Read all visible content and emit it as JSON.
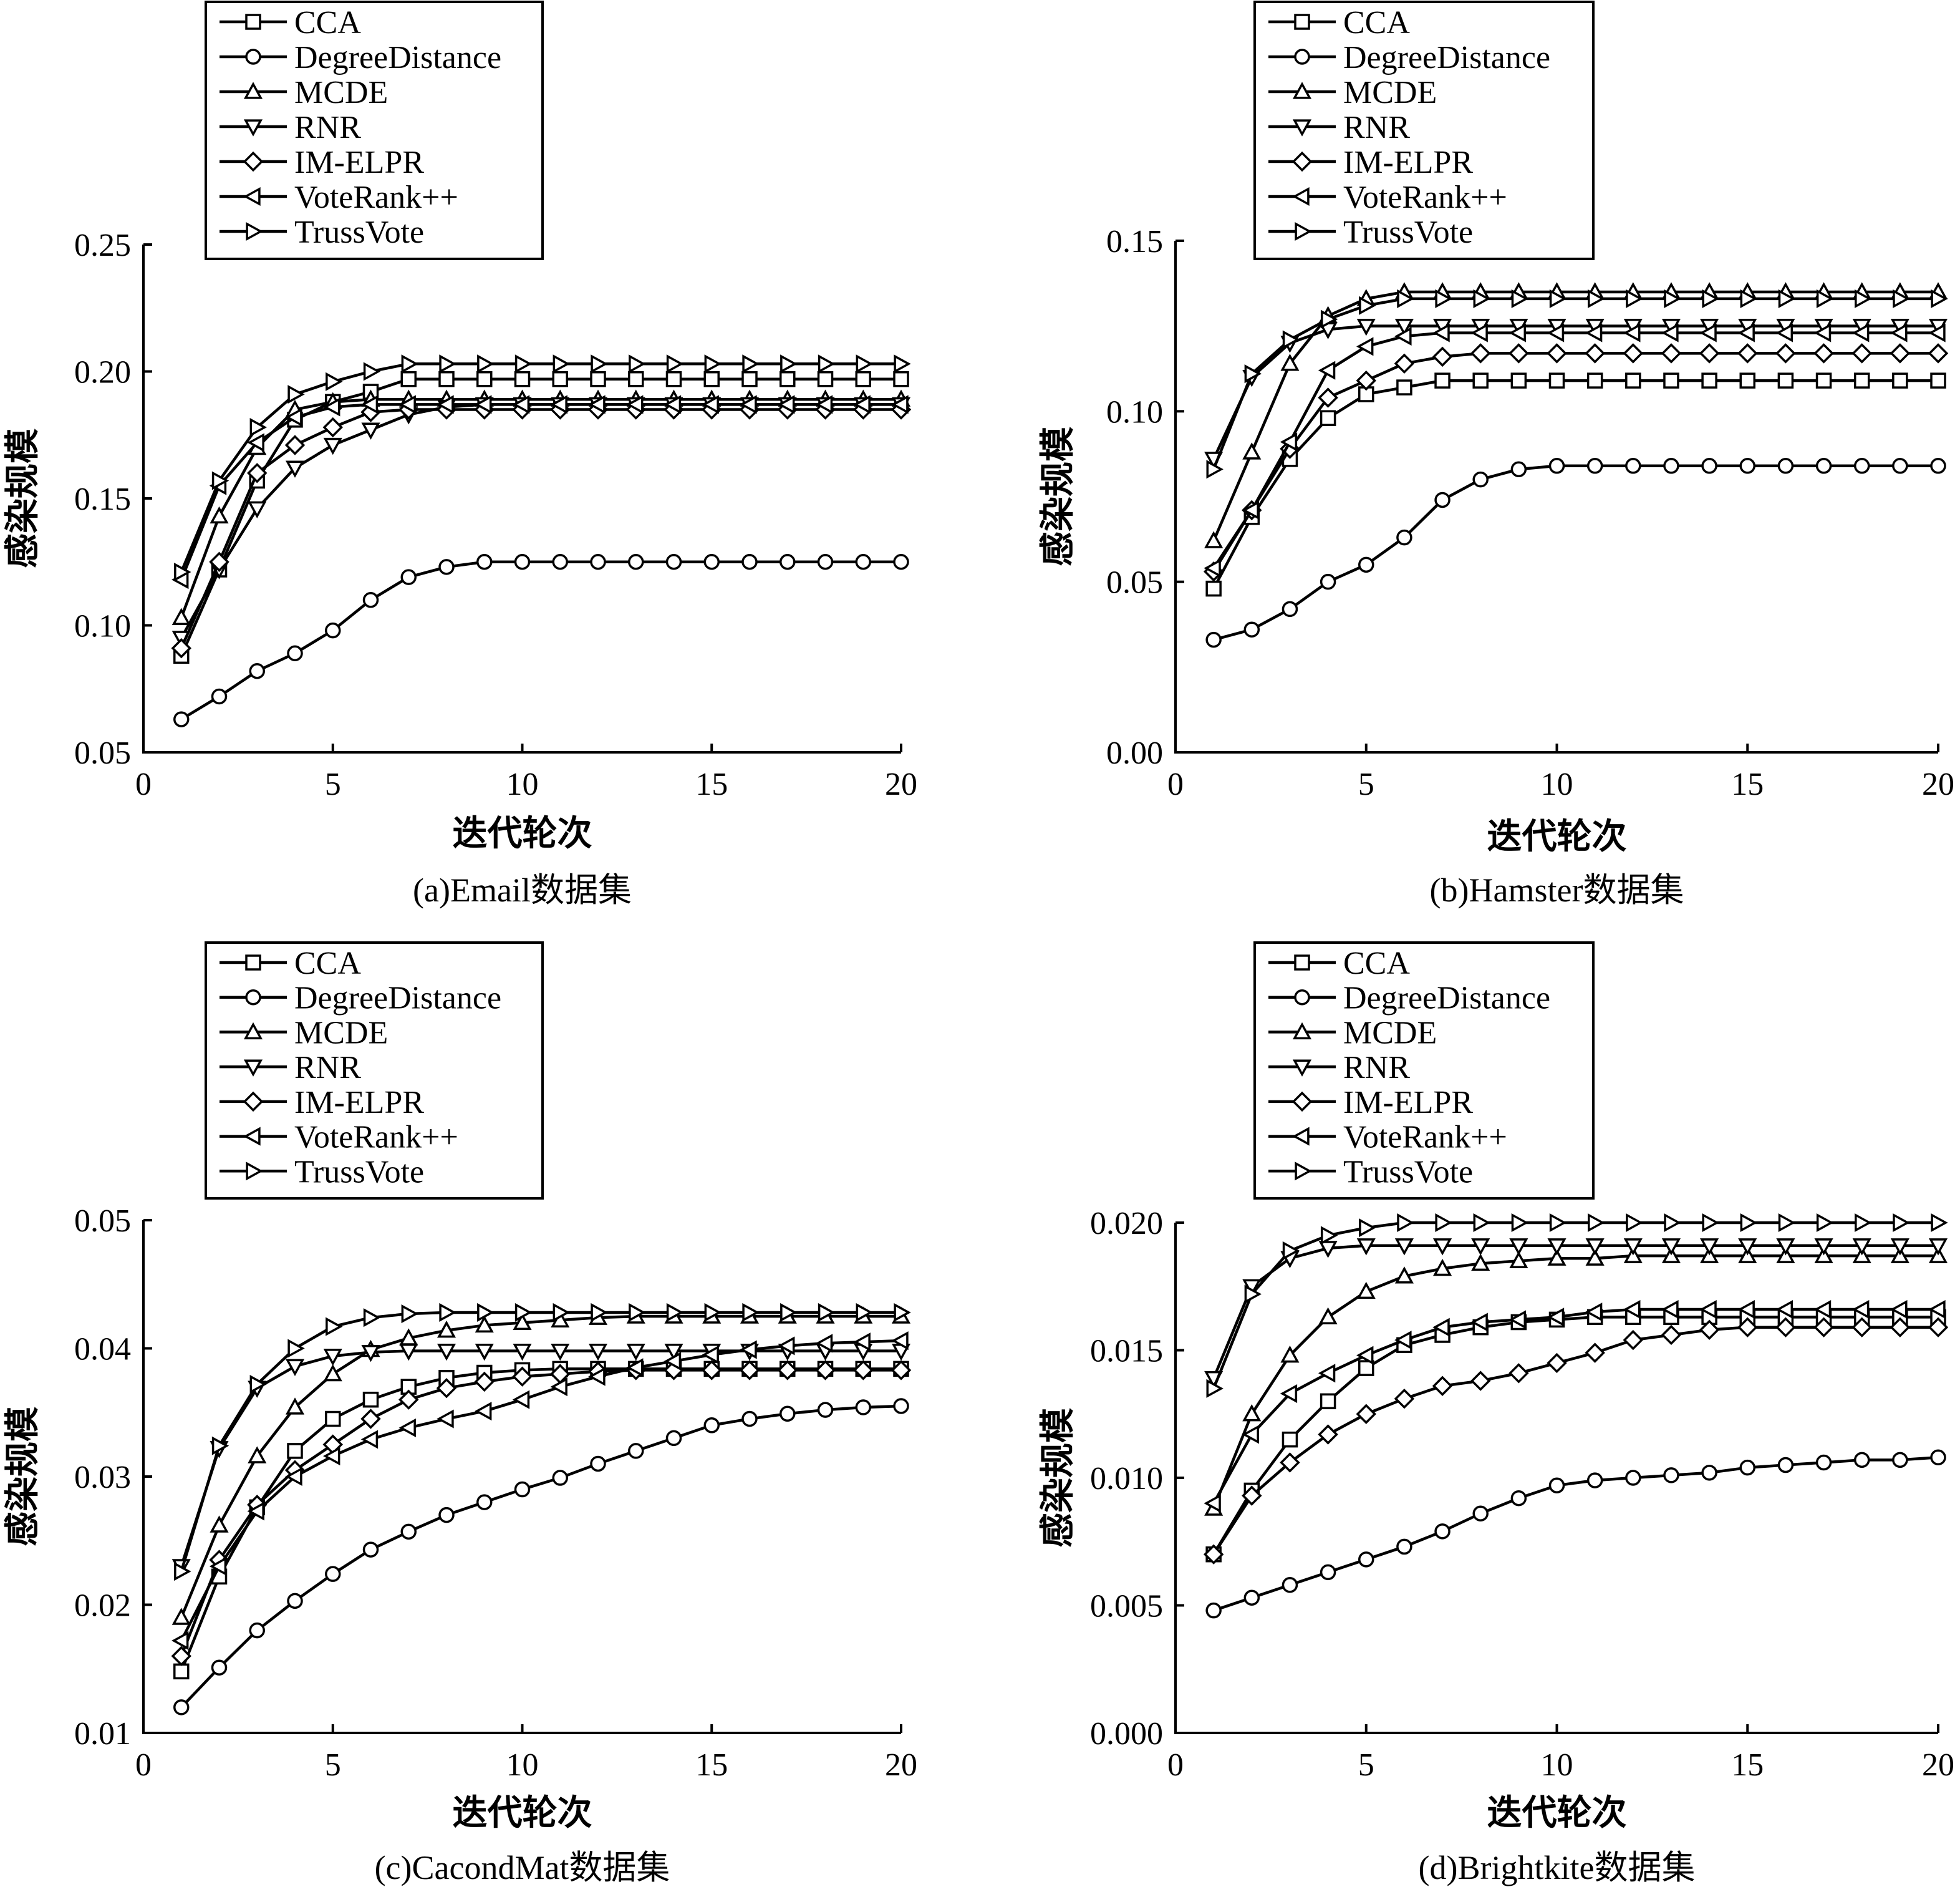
{
  "chart_data": [
    {
      "type": "line",
      "caption": "(a)Email数据集",
      "xlabel": "迭代轮次",
      "ylabel": "感染规模",
      "xlim": [
        0,
        20
      ],
      "ylim": [
        0.05,
        0.25
      ],
      "xticks": [
        0,
        5,
        10,
        15,
        20
      ],
      "yticks": [
        "0.05",
        "0.10",
        "0.15",
        "0.20",
        "0.25"
      ],
      "legend_position": "top-left",
      "grid": false,
      "x": [
        1,
        2,
        3,
        4,
        5,
        6,
        7,
        8,
        9,
        10,
        11,
        12,
        13,
        14,
        15,
        16,
        17,
        18,
        19,
        20
      ],
      "series": [
        {
          "name": "CCA",
          "marker": "square",
          "values": [
            0.088,
            0.122,
            0.157,
            0.181,
            0.188,
            0.192,
            0.197,
            0.197,
            0.197,
            0.197,
            0.197,
            0.197,
            0.197,
            0.197,
            0.197,
            0.197,
            0.197,
            0.197,
            0.197,
            0.197
          ]
        },
        {
          "name": "DegreeDistance",
          "marker": "circle",
          "values": [
            0.063,
            0.072,
            0.082,
            0.089,
            0.098,
            0.11,
            0.119,
            0.123,
            0.125,
            0.125,
            0.125,
            0.125,
            0.125,
            0.125,
            0.125,
            0.125,
            0.125,
            0.125,
            0.125,
            0.125
          ]
        },
        {
          "name": "MCDE",
          "marker": "triangle-up",
          "values": [
            0.103,
            0.143,
            0.17,
            0.185,
            0.188,
            0.189,
            0.189,
            0.189,
            0.189,
            0.189,
            0.189,
            0.189,
            0.189,
            0.189,
            0.189,
            0.189,
            0.189,
            0.189,
            0.189,
            0.189
          ]
        },
        {
          "name": "RNR",
          "marker": "triangle-down",
          "values": [
            0.095,
            0.122,
            0.146,
            0.162,
            0.171,
            0.177,
            0.183,
            0.186,
            0.187,
            0.187,
            0.187,
            0.187,
            0.187,
            0.187,
            0.187,
            0.187,
            0.187,
            0.187,
            0.187,
            0.187
          ]
        },
        {
          "name": "IM-ELPR",
          "marker": "diamond",
          "values": [
            0.091,
            0.125,
            0.16,
            0.171,
            0.178,
            0.184,
            0.185,
            0.185,
            0.185,
            0.185,
            0.185,
            0.185,
            0.185,
            0.185,
            0.185,
            0.185,
            0.185,
            0.185,
            0.185,
            0.185
          ]
        },
        {
          "name": "VoteRank++",
          "marker": "triangle-left",
          "values": [
            0.118,
            0.155,
            0.172,
            0.182,
            0.186,
            0.187,
            0.187,
            0.187,
            0.187,
            0.187,
            0.187,
            0.187,
            0.187,
            0.187,
            0.187,
            0.187,
            0.187,
            0.187,
            0.187,
            0.187
          ]
        },
        {
          "name": "TrussVote",
          "marker": "triangle-right",
          "values": [
            0.121,
            0.157,
            0.178,
            0.191,
            0.196,
            0.2,
            0.203,
            0.203,
            0.203,
            0.203,
            0.203,
            0.203,
            0.203,
            0.203,
            0.203,
            0.203,
            0.203,
            0.203,
            0.203,
            0.203
          ]
        }
      ]
    },
    {
      "type": "line",
      "caption": "(b)Hamster数据集",
      "xlabel": "迭代轮次",
      "ylabel": "感染规模",
      "xlim": [
        0,
        20
      ],
      "ylim": [
        0,
        0.15
      ],
      "xticks": [
        0,
        5,
        10,
        15,
        20
      ],
      "yticks": [
        "0.00",
        "0.05",
        "0.10",
        "0.15"
      ],
      "legend_position": "top-left",
      "grid": false,
      "x": [
        1,
        2,
        3,
        4,
        5,
        6,
        7,
        8,
        9,
        10,
        11,
        12,
        13,
        14,
        15,
        16,
        17,
        18,
        19,
        20
      ],
      "series": [
        {
          "name": "CCA",
          "marker": "square",
          "values": [
            0.048,
            0.069,
            0.086,
            0.098,
            0.105,
            0.107,
            0.109,
            0.109,
            0.109,
            0.109,
            0.109,
            0.109,
            0.109,
            0.109,
            0.109,
            0.109,
            0.109,
            0.109,
            0.109,
            0.109
          ]
        },
        {
          "name": "DegreeDistance",
          "marker": "circle",
          "values": [
            0.033,
            0.036,
            0.042,
            0.05,
            0.055,
            0.063,
            0.074,
            0.08,
            0.083,
            0.084,
            0.084,
            0.084,
            0.084,
            0.084,
            0.084,
            0.084,
            0.084,
            0.084,
            0.084,
            0.084
          ]
        },
        {
          "name": "MCDE",
          "marker": "triangle-up",
          "values": [
            0.062,
            0.088,
            0.114,
            0.128,
            0.133,
            0.135,
            0.135,
            0.135,
            0.135,
            0.135,
            0.135,
            0.135,
            0.135,
            0.135,
            0.135,
            0.135,
            0.135,
            0.135,
            0.135,
            0.135
          ]
        },
        {
          "name": "RNR",
          "marker": "triangle-down",
          "values": [
            0.086,
            0.11,
            0.12,
            0.124,
            0.125,
            0.125,
            0.125,
            0.125,
            0.125,
            0.125,
            0.125,
            0.125,
            0.125,
            0.125,
            0.125,
            0.125,
            0.125,
            0.125,
            0.125,
            0.125
          ]
        },
        {
          "name": "IM-ELPR",
          "marker": "diamond",
          "values": [
            0.053,
            0.071,
            0.089,
            0.104,
            0.109,
            0.114,
            0.116,
            0.117,
            0.117,
            0.117,
            0.117,
            0.117,
            0.117,
            0.117,
            0.117,
            0.117,
            0.117,
            0.117,
            0.117,
            0.117
          ]
        },
        {
          "name": "VoteRank++",
          "marker": "triangle-left",
          "values": [
            0.054,
            0.071,
            0.091,
            0.112,
            0.119,
            0.122,
            0.123,
            0.123,
            0.123,
            0.123,
            0.123,
            0.123,
            0.123,
            0.123,
            0.123,
            0.123,
            0.123,
            0.123,
            0.123,
            0.123
          ]
        },
        {
          "name": "TrussVote",
          "marker": "triangle-right",
          "values": [
            0.083,
            0.111,
            0.121,
            0.127,
            0.131,
            0.133,
            0.133,
            0.133,
            0.133,
            0.133,
            0.133,
            0.133,
            0.133,
            0.133,
            0.133,
            0.133,
            0.133,
            0.133,
            0.133,
            0.133
          ]
        }
      ]
    },
    {
      "type": "line",
      "caption": "(c)CacondMat数据集",
      "xlabel": "迭代轮次",
      "ylabel": "感染规模",
      "xlim": [
        0,
        20
      ],
      "ylim": [
        0.01,
        0.05
      ],
      "xticks": [
        0,
        5,
        10,
        15,
        20
      ],
      "yticks": [
        "0.01",
        "0.02",
        "0.03",
        "0.04",
        "0.05"
      ],
      "legend_position": "top-left",
      "grid": false,
      "x": [
        1,
        2,
        3,
        4,
        5,
        6,
        7,
        8,
        9,
        10,
        11,
        12,
        13,
        14,
        15,
        16,
        17,
        18,
        19,
        20
      ],
      "series": [
        {
          "name": "CCA",
          "marker": "square",
          "values": [
            0.0148,
            0.0222,
            0.0276,
            0.032,
            0.0345,
            0.036,
            0.037,
            0.0377,
            0.0381,
            0.0383,
            0.0384,
            0.0384,
            0.0384,
            0.0384,
            0.0384,
            0.0384,
            0.0384,
            0.0384,
            0.0384,
            0.0384
          ]
        },
        {
          "name": "DegreeDistance",
          "marker": "circle",
          "values": [
            0.012,
            0.0151,
            0.018,
            0.0203,
            0.0224,
            0.0243,
            0.0257,
            0.027,
            0.028,
            0.029,
            0.0299,
            0.031,
            0.032,
            0.033,
            0.034,
            0.0345,
            0.0349,
            0.0352,
            0.0354,
            0.0355
          ]
        },
        {
          "name": "MCDE",
          "marker": "triangle-up",
          "values": [
            0.019,
            0.0262,
            0.0316,
            0.0354,
            0.038,
            0.0399,
            0.0408,
            0.0414,
            0.0418,
            0.042,
            0.0422,
            0.0424,
            0.0425,
            0.0425,
            0.0425,
            0.0425,
            0.0425,
            0.0425,
            0.0425,
            0.0425
          ]
        },
        {
          "name": "RNR",
          "marker": "triangle-down",
          "values": [
            0.023,
            0.0322,
            0.0369,
            0.0386,
            0.0394,
            0.0397,
            0.0398,
            0.0398,
            0.0398,
            0.0398,
            0.0398,
            0.0398,
            0.0398,
            0.0398,
            0.0398,
            0.0398,
            0.0398,
            0.0398,
            0.0398,
            0.0398
          ]
        },
        {
          "name": "IM-ELPR",
          "marker": "diamond",
          "values": [
            0.016,
            0.0235,
            0.0278,
            0.0305,
            0.0325,
            0.0345,
            0.036,
            0.0369,
            0.0374,
            0.0378,
            0.038,
            0.0382,
            0.0383,
            0.0383,
            0.0383,
            0.0383,
            0.0383,
            0.0383,
            0.0383,
            0.0383
          ]
        },
        {
          "name": "VoteRank++",
          "marker": "triangle-left",
          "values": [
            0.0172,
            0.023,
            0.0273,
            0.03,
            0.0316,
            0.0329,
            0.0338,
            0.0345,
            0.0351,
            0.036,
            0.037,
            0.0378,
            0.0385,
            0.039,
            0.0395,
            0.0399,
            0.0402,
            0.0404,
            0.0405,
            0.0406
          ]
        },
        {
          "name": "TrussVote",
          "marker": "triangle-right",
          "values": [
            0.0226,
            0.0324,
            0.0372,
            0.04,
            0.0417,
            0.0424,
            0.0427,
            0.0428,
            0.0428,
            0.0428,
            0.0428,
            0.0428,
            0.0428,
            0.0428,
            0.0428,
            0.0428,
            0.0428,
            0.0428,
            0.0428,
            0.0428
          ]
        }
      ]
    },
    {
      "type": "line",
      "caption": "(d)Brightkite数据集",
      "xlabel": "迭代轮次",
      "ylabel": "感染规模",
      "xlim": [
        0,
        20
      ],
      "ylim": [
        0,
        0.02
      ],
      "xticks": [
        0,
        5,
        10,
        15,
        20
      ],
      "yticks": [
        "0.000",
        "0.005",
        "0.010",
        "0.015",
        "0.020"
      ],
      "legend_position": "top-left",
      "grid": false,
      "x": [
        1,
        2,
        3,
        4,
        5,
        6,
        7,
        8,
        9,
        10,
        11,
        12,
        13,
        14,
        15,
        16,
        17,
        18,
        19,
        20
      ],
      "series": [
        {
          "name": "CCA",
          "marker": "square",
          "values": [
            0.007,
            0.0095,
            0.0115,
            0.013,
            0.0143,
            0.0152,
            0.0156,
            0.0159,
            0.0161,
            0.0162,
            0.0163,
            0.0163,
            0.0163,
            0.0163,
            0.0163,
            0.0163,
            0.0163,
            0.0163,
            0.0163,
            0.0163
          ]
        },
        {
          "name": "DegreeDistance",
          "marker": "circle",
          "values": [
            0.0048,
            0.0053,
            0.0058,
            0.0063,
            0.0068,
            0.0073,
            0.0079,
            0.0086,
            0.0092,
            0.0097,
            0.0099,
            0.01,
            0.0101,
            0.0102,
            0.0104,
            0.0105,
            0.0106,
            0.0107,
            0.0107,
            0.0108
          ]
        },
        {
          "name": "MCDE",
          "marker": "triangle-up",
          "values": [
            0.0088,
            0.0125,
            0.0148,
            0.0163,
            0.0173,
            0.0179,
            0.0182,
            0.0184,
            0.0185,
            0.0186,
            0.0186,
            0.0187,
            0.0187,
            0.0187,
            0.0187,
            0.0187,
            0.0187,
            0.0187,
            0.0187,
            0.0187
          ]
        },
        {
          "name": "RNR",
          "marker": "triangle-down",
          "values": [
            0.0139,
            0.0175,
            0.0186,
            0.019,
            0.0191,
            0.0191,
            0.0191,
            0.0191,
            0.0191,
            0.0191,
            0.0191,
            0.0191,
            0.0191,
            0.0191,
            0.0191,
            0.0191,
            0.0191,
            0.0191,
            0.0191,
            0.0191
          ]
        },
        {
          "name": "IM-ELPR",
          "marker": "diamond",
          "values": [
            0.007,
            0.0093,
            0.0106,
            0.0117,
            0.0125,
            0.0131,
            0.0136,
            0.0138,
            0.0141,
            0.0145,
            0.0149,
            0.0154,
            0.0156,
            0.0158,
            0.0159,
            0.0159,
            0.0159,
            0.0159,
            0.0159,
            0.0159
          ]
        },
        {
          "name": "VoteRank++",
          "marker": "triangle-left",
          "values": [
            0.009,
            0.0117,
            0.0133,
            0.0141,
            0.0148,
            0.0154,
            0.0159,
            0.0161,
            0.0162,
            0.0163,
            0.0165,
            0.0166,
            0.0166,
            0.0166,
            0.0166,
            0.0166,
            0.0166,
            0.0166,
            0.0166,
            0.0166
          ]
        },
        {
          "name": "TrussVote",
          "marker": "triangle-right",
          "values": [
            0.0135,
            0.0172,
            0.0189,
            0.0195,
            0.0198,
            0.02,
            0.02,
            0.02,
            0.02,
            0.02,
            0.02,
            0.02,
            0.02,
            0.02,
            0.02,
            0.02,
            0.02,
            0.02,
            0.02,
            0.02
          ]
        }
      ]
    }
  ]
}
